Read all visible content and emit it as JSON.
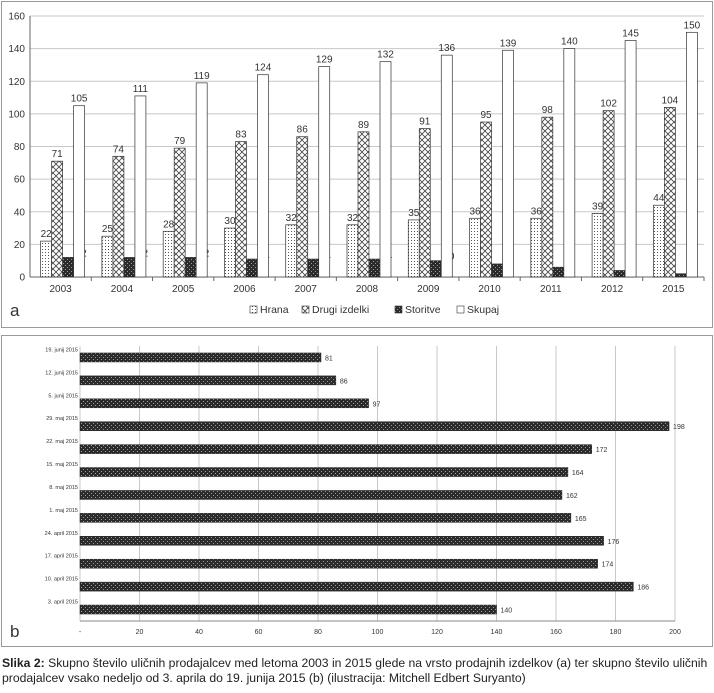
{
  "chart_data": [
    {
      "type": "bar",
      "panel_label": "a",
      "categories": [
        "2003",
        "2004",
        "2005",
        "2006",
        "2007",
        "2008",
        "2009",
        "2010",
        "2011",
        "2012",
        "2015"
      ],
      "series": [
        {
          "name": "Hrana",
          "values": [
            22,
            25,
            28,
            30,
            32,
            32,
            35,
            36,
            36,
            39,
            44
          ]
        },
        {
          "name": "Drugi izdelki",
          "values": [
            71,
            74,
            79,
            83,
            86,
            89,
            91,
            95,
            98,
            102,
            104
          ]
        },
        {
          "name": "Storitve",
          "values": [
            12,
            12,
            12,
            11,
            11,
            11,
            10,
            8,
            6,
            4,
            2
          ]
        },
        {
          "name": "Skupaj",
          "values": [
            105,
            111,
            119,
            124,
            129,
            132,
            136,
            139,
            140,
            145,
            150
          ]
        }
      ],
      "ylim": [
        0,
        160
      ],
      "yticks": [
        0,
        20,
        40,
        60,
        80,
        100,
        120,
        140,
        160
      ],
      "grid": true,
      "legend": "bottom",
      "legend_prefixes": [
        "⊠",
        "□",
        "⊠",
        "□"
      ]
    },
    {
      "type": "bar",
      "orientation": "horizontal",
      "panel_label": "b",
      "categories": [
        "19. junij 2015",
        "12. junij 2015",
        "5. junij 2015",
        "29. maj 2015",
        "22. maj 2015",
        "15. maj 2015",
        "8. maj 2015",
        "1. maj 2015",
        "24. april 2015",
        "17. april 2015",
        "10. april 2015",
        "3. april 2015"
      ],
      "values": [
        81,
        86,
        97,
        198,
        172,
        164,
        162,
        165,
        176,
        174,
        186,
        140
      ],
      "xlim": [
        0,
        200
      ],
      "xticks": [
        "-",
        "20",
        "40",
        "60",
        "80",
        "100",
        "120",
        "140",
        "160",
        "180",
        "200"
      ],
      "grid": true
    }
  ],
  "caption": {
    "lead": "Slika 2:",
    "text": " Skupno število uličnih prodajalcev med letoma 2003 in 2015 glede na vrsto prodajnih izdelkov (a) ter skupno število uličnih prodajalcev vsako nedeljo od 3. aprila do 19. junija 2015 (b) (ilustracija: Mitchell Edbert Suryanto)"
  }
}
